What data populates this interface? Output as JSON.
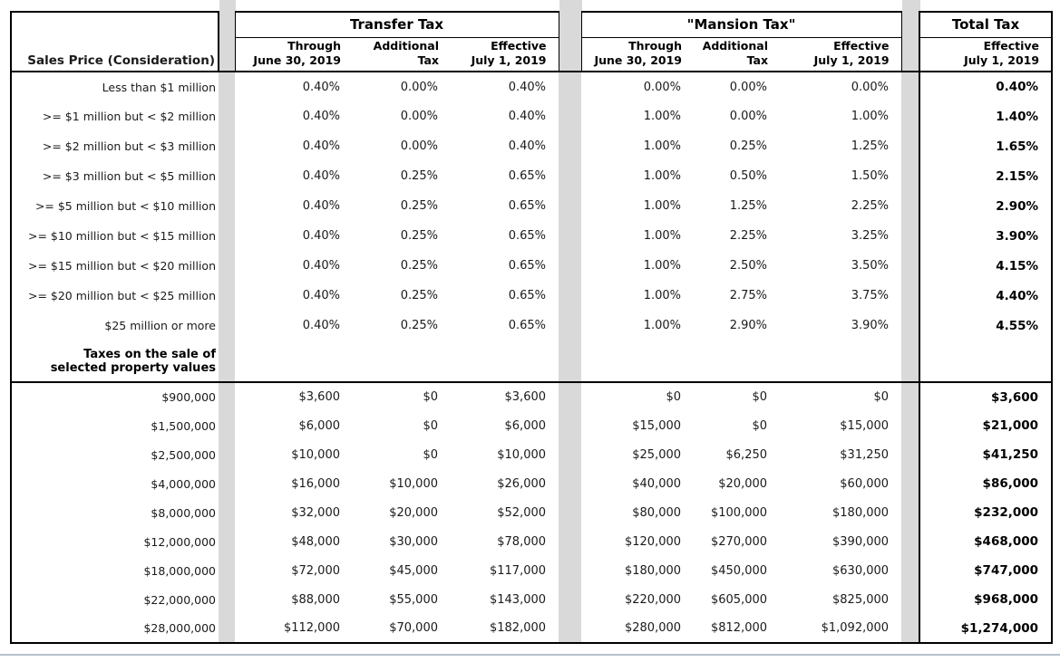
{
  "page": {
    "separator_color": "#d9d9d9",
    "border_color": "#000000",
    "bottom_rule_color": "#b7c0cd",
    "text_color": "#1a1a1a"
  },
  "header": {
    "corner_label": "Sales Price (Consideration)",
    "groups": [
      {
        "label": "Transfer Tax"
      },
      {
        "label": "\"Mansion Tax\""
      },
      {
        "label": "Total Tax"
      }
    ],
    "subcolumns": [
      {
        "line1": "Through",
        "line2": "June 30, 2019"
      },
      {
        "line1": "Additional",
        "line2": "Tax"
      },
      {
        "line1": "Effective",
        "line2": "July 1, 2019"
      },
      {
        "line1": "Through",
        "line2": "June 30, 2019"
      },
      {
        "line1": "Additional",
        "line2": "Tax"
      },
      {
        "line1": "Effective",
        "line2": "July 1, 2019"
      },
      {
        "line1": "Effective",
        "line2": "July 1, 2019"
      }
    ]
  },
  "rate_rows": [
    {
      "label": "Less than $1 million",
      "transfer": [
        "0.40%",
        "0.00%",
        "0.40%"
      ],
      "mansion": [
        "0.00%",
        "0.00%",
        "0.00%"
      ],
      "total": "0.40%"
    },
    {
      "label": ">= $1 million but < $2 million",
      "transfer": [
        "0.40%",
        "0.00%",
        "0.40%"
      ],
      "mansion": [
        "1.00%",
        "0.00%",
        "1.00%"
      ],
      "total": "1.40%"
    },
    {
      "label": ">= $2 million but < $3 million",
      "transfer": [
        "0.40%",
        "0.00%",
        "0.40%"
      ],
      "mansion": [
        "1.00%",
        "0.25%",
        "1.25%"
      ],
      "total": "1.65%"
    },
    {
      "label": ">= $3 million but < $5 million",
      "transfer": [
        "0.40%",
        "0.25%",
        "0.65%"
      ],
      "mansion": [
        "1.00%",
        "0.50%",
        "1.50%"
      ],
      "total": "2.15%"
    },
    {
      "label": ">= $5 million but < $10 million",
      "transfer": [
        "0.40%",
        "0.25%",
        "0.65%"
      ],
      "mansion": [
        "1.00%",
        "1.25%",
        "2.25%"
      ],
      "total": "2.90%"
    },
    {
      "label": ">= $10 million but < $15 million",
      "transfer": [
        "0.40%",
        "0.25%",
        "0.65%"
      ],
      "mansion": [
        "1.00%",
        "2.25%",
        "3.25%"
      ],
      "total": "3.90%"
    },
    {
      "label": ">= $15 million but < $20 million",
      "transfer": [
        "0.40%",
        "0.25%",
        "0.65%"
      ],
      "mansion": [
        "1.00%",
        "2.50%",
        "3.50%"
      ],
      "total": "4.15%"
    },
    {
      "label": ">= $20 million but < $25 million",
      "transfer": [
        "0.40%",
        "0.25%",
        "0.65%"
      ],
      "mansion": [
        "1.00%",
        "2.75%",
        "3.75%"
      ],
      "total": "4.40%"
    },
    {
      "label": "$25 million or more",
      "transfer": [
        "0.40%",
        "0.25%",
        "0.65%"
      ],
      "mansion": [
        "1.00%",
        "2.90%",
        "3.90%"
      ],
      "total": "4.55%"
    }
  ],
  "section_divider": {
    "line1": "Taxes on the sale of",
    "line2": "selected property values"
  },
  "amount_rows": [
    {
      "label": "$900,000",
      "transfer": [
        "$3,600",
        "$0",
        "$3,600"
      ],
      "mansion": [
        "$0",
        "$0",
        "$0"
      ],
      "total": "$3,600"
    },
    {
      "label": "$1,500,000",
      "transfer": [
        "$6,000",
        "$0",
        "$6,000"
      ],
      "mansion": [
        "$15,000",
        "$0",
        "$15,000"
      ],
      "total": "$21,000"
    },
    {
      "label": "$2,500,000",
      "transfer": [
        "$10,000",
        "$0",
        "$10,000"
      ],
      "mansion": [
        "$25,000",
        "$6,250",
        "$31,250"
      ],
      "total": "$41,250"
    },
    {
      "label": "$4,000,000",
      "transfer": [
        "$16,000",
        "$10,000",
        "$26,000"
      ],
      "mansion": [
        "$40,000",
        "$20,000",
        "$60,000"
      ],
      "total": "$86,000"
    },
    {
      "label": "$8,000,000",
      "transfer": [
        "$32,000",
        "$20,000",
        "$52,000"
      ],
      "mansion": [
        "$80,000",
        "$100,000",
        "$180,000"
      ],
      "total": "$232,000"
    },
    {
      "label": "$12,000,000",
      "transfer": [
        "$48,000",
        "$30,000",
        "$78,000"
      ],
      "mansion": [
        "$120,000",
        "$270,000",
        "$390,000"
      ],
      "total": "$468,000"
    },
    {
      "label": "$18,000,000",
      "transfer": [
        "$72,000",
        "$45,000",
        "$117,000"
      ],
      "mansion": [
        "$180,000",
        "$450,000",
        "$630,000"
      ],
      "total": "$747,000"
    },
    {
      "label": "$22,000,000",
      "transfer": [
        "$88,000",
        "$55,000",
        "$143,000"
      ],
      "mansion": [
        "$220,000",
        "$605,000",
        "$825,000"
      ],
      "total": "$968,000"
    },
    {
      "label": "$28,000,000",
      "transfer": [
        "$112,000",
        "$70,000",
        "$182,000"
      ],
      "mansion": [
        "$280,000",
        "$812,000",
        "$1,092,000"
      ],
      "total": "$1,274,000"
    }
  ]
}
